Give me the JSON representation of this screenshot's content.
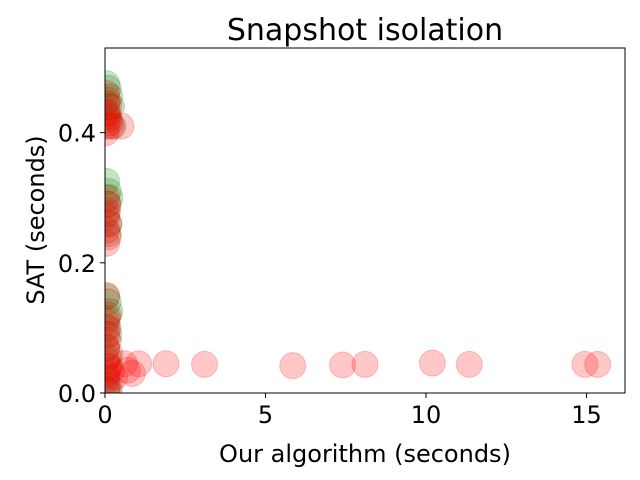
{
  "chart_data": {
    "type": "scatter",
    "title": "Snapshot isolation",
    "xlabel": "Our algorithm (seconds)",
    "ylabel": "SAT (seconds)",
    "xlim": [
      0,
      16.2
    ],
    "ylim": [
      0,
      0.53
    ],
    "xticks": [
      0,
      5,
      10,
      15
    ],
    "yticks": [
      0.0,
      0.2,
      0.4
    ],
    "xtick_labels": [
      "0",
      "5",
      "10",
      "15"
    ],
    "ytick_labels": [
      "0.0",
      "0.2",
      "0.4"
    ],
    "grid": false,
    "marker_alpha": 0.22,
    "series": [
      {
        "color": "#008000",
        "points": [
          [
            0.05,
            0.475
          ],
          [
            0.1,
            0.468
          ],
          [
            0.15,
            0.455
          ],
          [
            0.05,
            0.445
          ],
          [
            0.2,
            0.44
          ],
          [
            0.08,
            0.43
          ],
          [
            0.12,
            0.42
          ],
          [
            0.25,
            0.41
          ],
          [
            0.05,
            0.325
          ],
          [
            0.1,
            0.31
          ],
          [
            0.15,
            0.3
          ],
          [
            0.08,
            0.29
          ],
          [
            0.05,
            0.275
          ],
          [
            0.12,
            0.26
          ],
          [
            0.1,
            0.245
          ],
          [
            0.05,
            0.148
          ],
          [
            0.1,
            0.14
          ],
          [
            0.15,
            0.125
          ],
          [
            0.08,
            0.115
          ],
          [
            0.05,
            0.1
          ],
          [
            0.12,
            0.09
          ],
          [
            0.05,
            0.07
          ],
          [
            0.1,
            0.055
          ],
          [
            0.15,
            0.04
          ],
          [
            0.05,
            0.025
          ],
          [
            0.08,
            0.012
          ],
          [
            0.1,
            0.005
          ]
        ]
      },
      {
        "color": "#ff0000",
        "points": [
          [
            0.05,
            0.46
          ],
          [
            0.08,
            0.45
          ],
          [
            0.12,
            0.44
          ],
          [
            0.05,
            0.43
          ],
          [
            0.1,
            0.425
          ],
          [
            0.15,
            0.415
          ],
          [
            0.05,
            0.41
          ],
          [
            0.2,
            0.41
          ],
          [
            0.03,
            0.4
          ],
          [
            0.5,
            0.41
          ],
          [
            0.05,
            0.3
          ],
          [
            0.1,
            0.29
          ],
          [
            0.08,
            0.28
          ],
          [
            0.05,
            0.27
          ],
          [
            0.12,
            0.26
          ],
          [
            0.05,
            0.25
          ],
          [
            0.1,
            0.24
          ],
          [
            0.05,
            0.23
          ],
          [
            0.05,
            0.15
          ],
          [
            0.1,
            0.12
          ],
          [
            0.05,
            0.11
          ],
          [
            0.1,
            0.1
          ],
          [
            0.05,
            0.09
          ],
          [
            0.1,
            0.08
          ],
          [
            0.05,
            0.07
          ],
          [
            0.15,
            0.06
          ],
          [
            0.05,
            0.05
          ],
          [
            0.1,
            0.04
          ],
          [
            0.2,
            0.035
          ],
          [
            0.05,
            0.03
          ],
          [
            0.3,
            0.025
          ],
          [
            0.05,
            0.02
          ],
          [
            0.15,
            0.01
          ],
          [
            0.05,
            0.005
          ],
          [
            0.6,
            0.045
          ],
          [
            0.7,
            0.035
          ],
          [
            0.85,
            0.03
          ],
          [
            1.05,
            0.045
          ],
          [
            1.9,
            0.045
          ],
          [
            3.1,
            0.044
          ],
          [
            5.85,
            0.042
          ],
          [
            7.4,
            0.043
          ],
          [
            8.1,
            0.044
          ],
          [
            10.2,
            0.046
          ],
          [
            11.35,
            0.044
          ],
          [
            14.95,
            0.044
          ],
          [
            15.35,
            0.044
          ]
        ]
      }
    ]
  }
}
